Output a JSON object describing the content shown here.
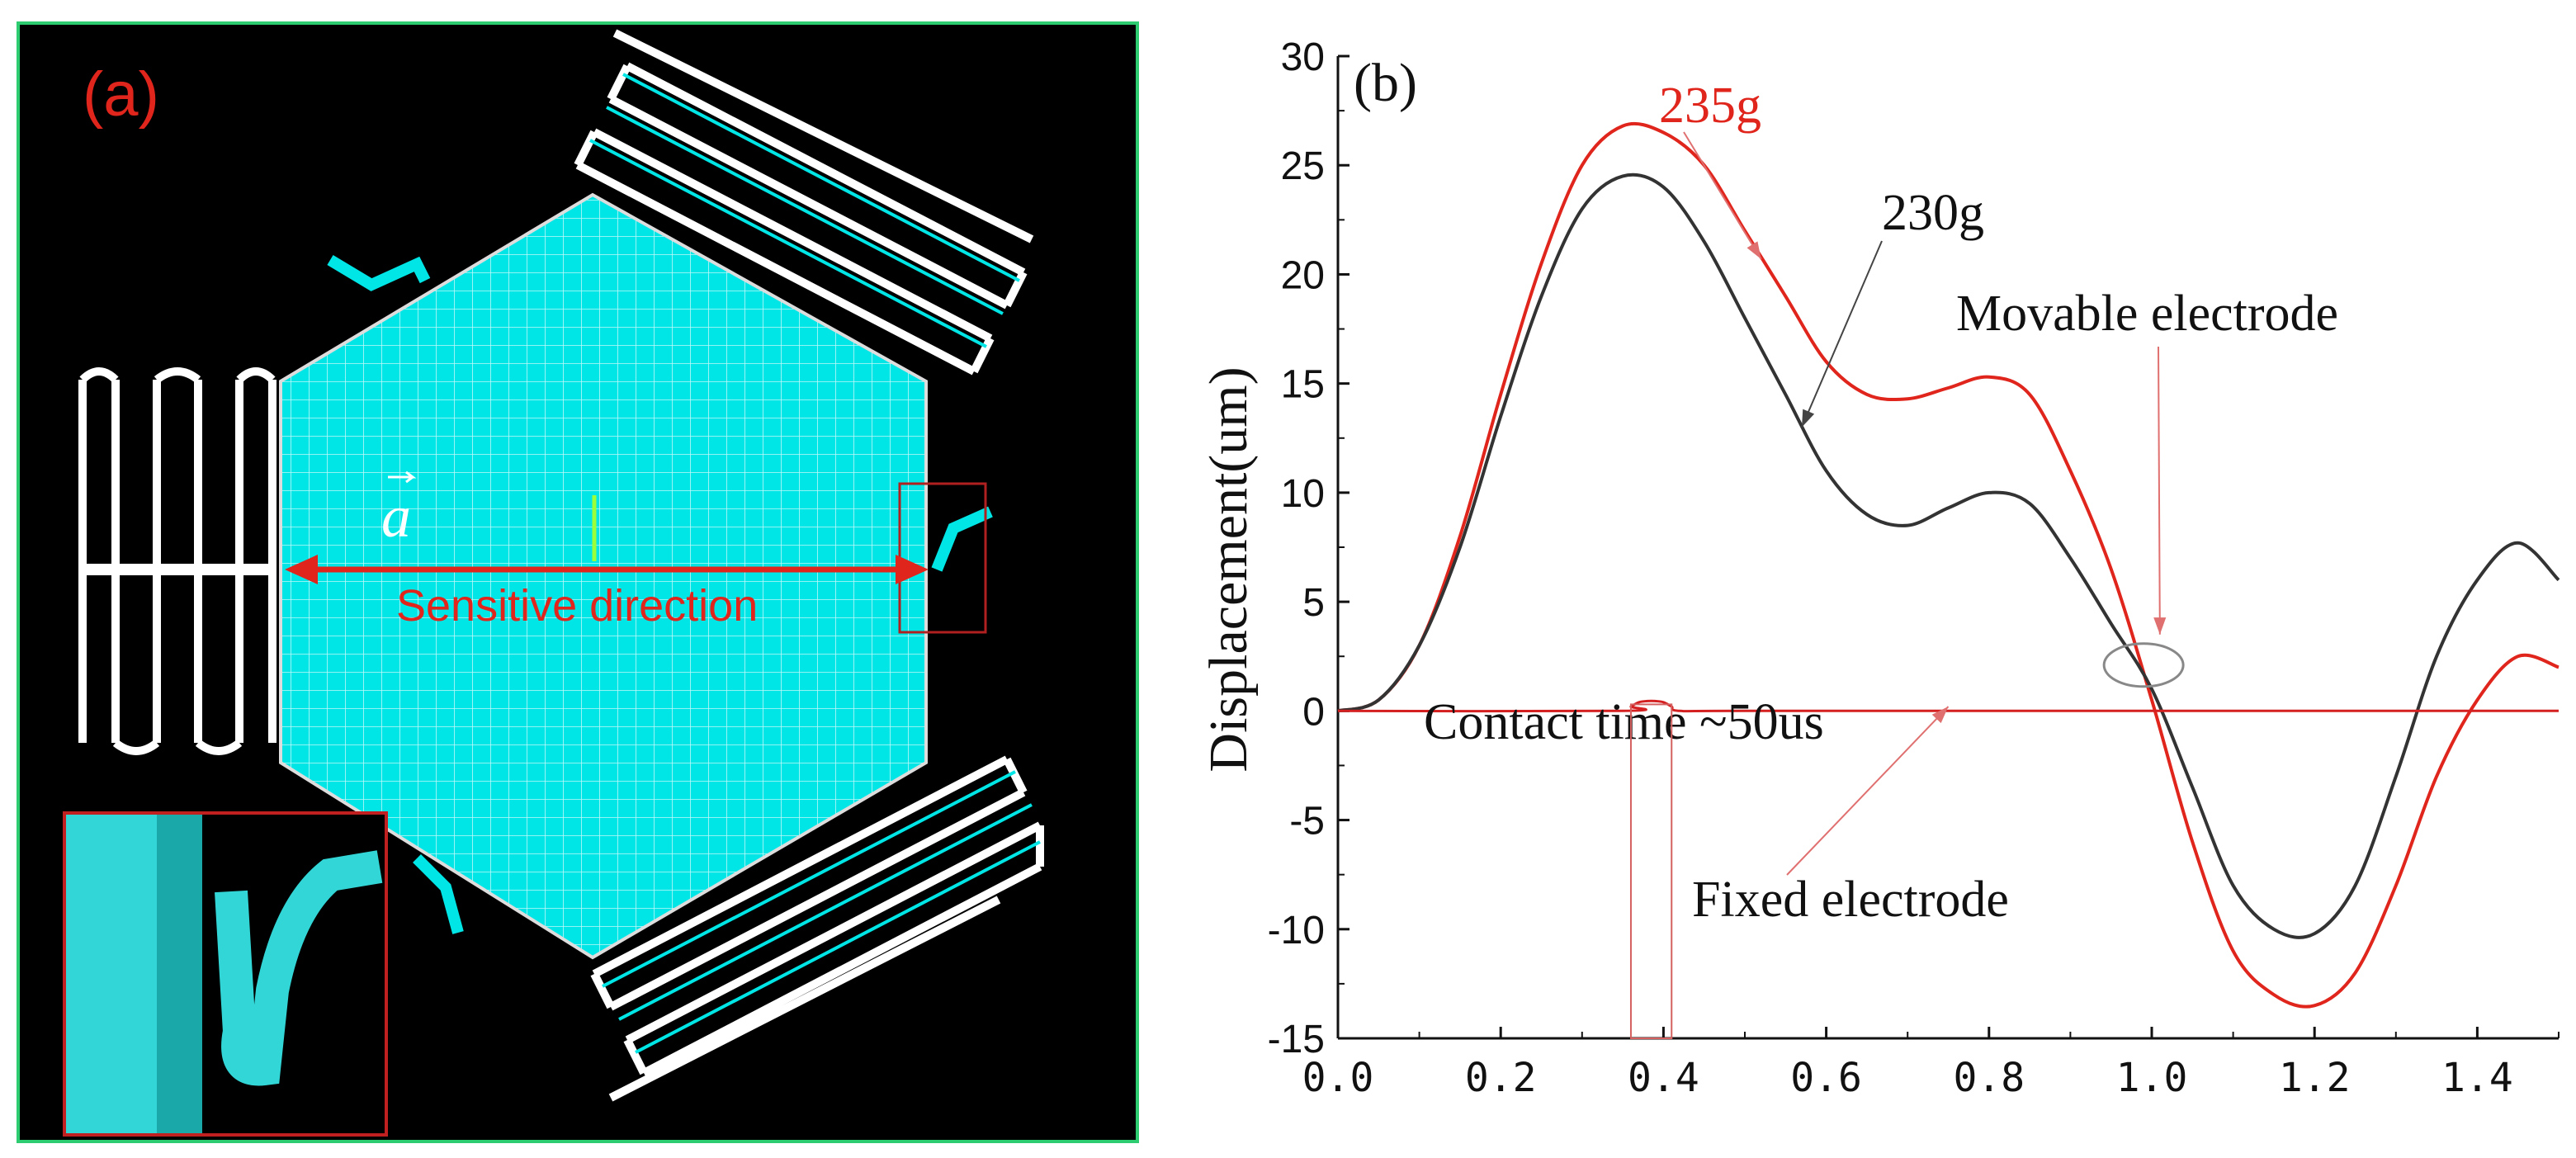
{
  "panel_a": {
    "label": "(a)",
    "vector_symbol": "a",
    "arrow_label": "Sensitive direction",
    "colors": {
      "background": "#000000",
      "mesh": "#00e5e5",
      "annotation": "#e0251c",
      "frame": "#2ecc71"
    }
  },
  "panel_b": {
    "label": "(b)",
    "annotations": {
      "label_235": "235g",
      "label_230": "230g",
      "movable": "Movable electrode",
      "fixed": "Fixed electrode",
      "contact": "Contact time ~50us"
    },
    "colors": {
      "series_235": "#e0251c",
      "series_230": "#333333",
      "fixed": "#d42020"
    }
  },
  "chart_data": {
    "type": "line",
    "title": "",
    "xlabel": "",
    "ylabel": "Displacement(um)",
    "xlim": [
      0.0,
      1.5
    ],
    "ylim": [
      -15,
      30
    ],
    "xticks": [
      0.0,
      0.2,
      0.4,
      0.6,
      0.8,
      1.0,
      1.2,
      1.4
    ],
    "xtick_labels": [
      "0.0",
      "0.2",
      "0.4",
      "0.6",
      "0.8",
      "1.0",
      "1.2",
      "1.4"
    ],
    "yticks": [
      -15,
      -10,
      -5,
      0,
      5,
      10,
      15,
      20,
      25,
      30
    ],
    "ytick_labels": [
      "-15",
      "-10",
      "-5",
      "0",
      "5",
      "10",
      "15",
      "20",
      "25",
      "30"
    ],
    "series": [
      {
        "name": "235g",
        "x": [
          0,
          0.05,
          0.1,
          0.15,
          0.2,
          0.25,
          0.3,
          0.35,
          0.4,
          0.45,
          0.5,
          0.55,
          0.6,
          0.65,
          0.7,
          0.75,
          0.8,
          0.85,
          0.9,
          0.95,
          1.0,
          1.05,
          1.1,
          1.15,
          1.2,
          1.25,
          1.3,
          1.35,
          1.4,
          1.45,
          1.5
        ],
        "values": [
          0,
          0.5,
          3,
          8,
          14.5,
          20.5,
          25,
          26.8,
          26.5,
          25,
          22,
          19,
          16,
          14.5,
          14.3,
          14.8,
          15.3,
          14.5,
          11,
          6.5,
          0.5,
          -6,
          -11,
          -13,
          -13.5,
          -12,
          -8,
          -3,
          0.5,
          2.5,
          2
        ]
      },
      {
        "name": "230g",
        "x": [
          0,
          0.05,
          0.1,
          0.15,
          0.2,
          0.25,
          0.3,
          0.35,
          0.4,
          0.45,
          0.5,
          0.55,
          0.6,
          0.65,
          0.7,
          0.75,
          0.8,
          0.85,
          0.9,
          0.95,
          1.0,
          1.05,
          1.1,
          1.15,
          1.2,
          1.25,
          1.3,
          1.35,
          1.4,
          1.45,
          1.5
        ],
        "values": [
          0,
          0.5,
          3,
          7.5,
          13.5,
          19,
          23,
          24.5,
          24,
          21.5,
          18,
          14.5,
          11,
          9,
          8.5,
          9.3,
          10,
          9.5,
          7,
          4,
          1,
          -3.5,
          -8,
          -10,
          -10.2,
          -8,
          -3,
          2.5,
          6,
          7.7,
          6
        ]
      },
      {
        "name": "Fixed electrode",
        "x": [
          0,
          0.35,
          0.36,
          0.37,
          0.38,
          0.39,
          0.4,
          0.41,
          0.42,
          0.5,
          1.0,
          1.5
        ],
        "values": [
          0,
          0,
          0.2,
          0.4,
          0.45,
          0.45,
          0.4,
          0.2,
          0,
          0,
          0,
          0
        ]
      }
    ]
  }
}
